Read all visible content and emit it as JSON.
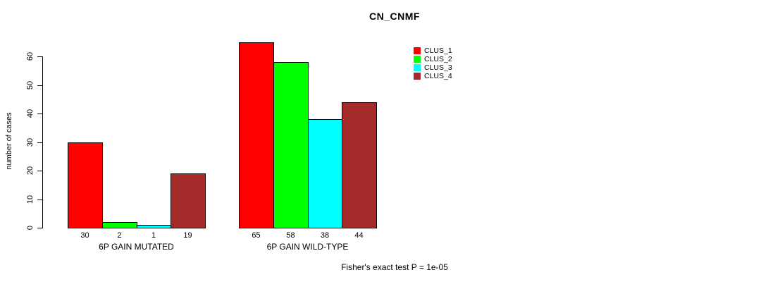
{
  "title": "CN_CNMF",
  "ylabel": "number of cases",
  "footer": "Fisher's exact test P = 1e-05",
  "legend": {
    "items": [
      {
        "label": "CLUS_1",
        "color": "#FF0000"
      },
      {
        "label": "CLUS_2",
        "color": "#00FF00"
      },
      {
        "label": "CLUS_3",
        "color": "#00FFFF"
      },
      {
        "label": "CLUS_4",
        "color": "#A52A2A"
      }
    ]
  },
  "chart_data": {
    "type": "bar",
    "title": "CN_CNMF",
    "ylabel": "number of cases",
    "xlabel": "",
    "categories": [
      "6P GAIN MUTATED",
      "6P GAIN WILD-TYPE"
    ],
    "series": [
      {
        "name": "CLUS_1",
        "color": "#FF0000",
        "values": [
          30,
          65
        ]
      },
      {
        "name": "CLUS_2",
        "color": "#00FF00",
        "values": [
          2,
          58
        ]
      },
      {
        "name": "CLUS_3",
        "color": "#00FFFF",
        "values": [
          1,
          38
        ]
      },
      {
        "name": "CLUS_4",
        "color": "#A52A2A",
        "values": [
          19,
          44
        ]
      }
    ],
    "bar_value_labels": [
      [
        30,
        2,
        1,
        19
      ],
      [
        65,
        58,
        38,
        44
      ]
    ],
    "yticks": [
      0,
      10,
      20,
      30,
      40,
      50,
      60
    ],
    "ylim": [
      0,
      65
    ],
    "grid": false,
    "legend_position": "top-right",
    "legend_entries": [
      "CLUS_1",
      "CLUS_2",
      "CLUS_3",
      "CLUS_4"
    ],
    "annotation": "Fisher's exact test P = 1e-05"
  }
}
